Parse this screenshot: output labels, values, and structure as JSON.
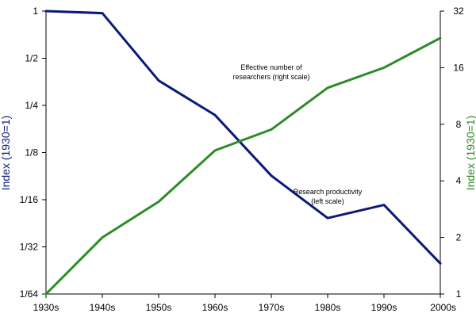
{
  "chart_data": {
    "type": "line",
    "x": [
      "1930s",
      "1940s",
      "1950s",
      "1960s",
      "1970s",
      "1980s",
      "1990s",
      "2000s"
    ],
    "series": [
      {
        "key": "productivity",
        "axis": "left",
        "color": "#0b1a78",
        "values": [
          1,
          0.97,
          0.36,
          0.217,
          0.089,
          0.0477,
          0.0579,
          0.0245
        ]
      },
      {
        "key": "researchers",
        "axis": "right",
        "color": "#2e8b27",
        "values": [
          1,
          2,
          3.1,
          5.8,
          7.5,
          12.5,
          16,
          23
        ]
      }
    ],
    "left_axis": {
      "title": "Index (1930=1)",
      "scale": "log2",
      "range": [
        0.015625,
        1
      ],
      "ticks": [
        {
          "v": 1,
          "label": "1"
        },
        {
          "v": 0.5,
          "label": "1/2"
        },
        {
          "v": 0.25,
          "label": "1/4"
        },
        {
          "v": 0.125,
          "label": "1/8"
        },
        {
          "v": 0.0625,
          "label": "1/16"
        },
        {
          "v": 0.03125,
          "label": "1/32"
        },
        {
          "v": 0.015625,
          "label": "1/64"
        }
      ],
      "color": "#0b1a78"
    },
    "right_axis": {
      "title": "Index (1930=1)",
      "scale": "log2",
      "range": [
        1,
        32
      ],
      "ticks": [
        {
          "v": 32,
          "label": "32"
        },
        {
          "v": 16,
          "label": "16"
        },
        {
          "v": 8,
          "label": "8"
        },
        {
          "v": 4,
          "label": "4"
        },
        {
          "v": 2,
          "label": "2"
        },
        {
          "v": 1,
          "label": "1"
        }
      ],
      "color": "#2e8b27"
    },
    "annotations": [
      {
        "key": "researchers",
        "lines": [
          "Effective number of",
          "researchers (right scale)"
        ]
      },
      {
        "key": "productivity",
        "lines": [
          "Research productivity",
          "(left scale)"
        ]
      }
    ],
    "grid": false,
    "legend": "none"
  }
}
